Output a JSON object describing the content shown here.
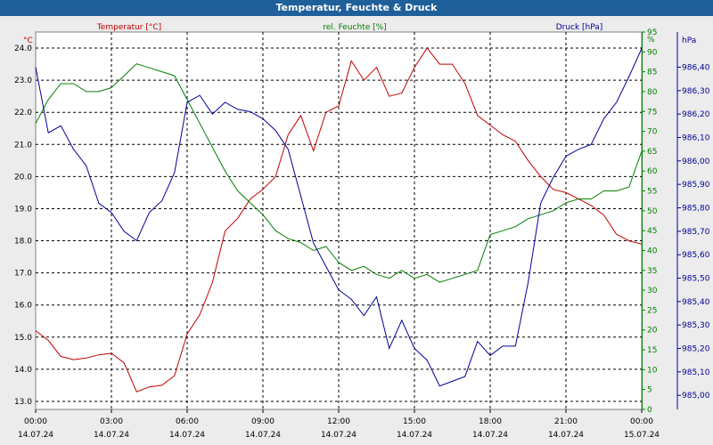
{
  "window": {
    "title": "Temperatur, Feuchte & Druck"
  },
  "colors": {
    "temp": "#c00000",
    "hum": "#008000",
    "press": "#000099",
    "title_bg": "#1f5f9a"
  },
  "chart_data": {
    "type": "line",
    "title": "Temperatur, Feuchte & Druck",
    "grid": true,
    "x_ticks": [
      {
        "time": "00:00",
        "date": "14.07.24"
      },
      {
        "time": "03:00",
        "date": "14.07.24"
      },
      {
        "time": "06:00",
        "date": "14.07.24"
      },
      {
        "time": "09:00",
        "date": "14.07.24"
      },
      {
        "time": "12:00",
        "date": "14.07.24"
      },
      {
        "time": "15:00",
        "date": "14.07.24"
      },
      {
        "time": "18:00",
        "date": "14.07.24"
      },
      {
        "time": "21:00",
        "date": "14.07.24"
      },
      {
        "time": "00:00",
        "date": "15.07.24"
      }
    ],
    "axes": {
      "temp": {
        "unit": "°C",
        "label": "Temperatur [°C]",
        "range": [
          12.75,
          24.5
        ],
        "ticks": [
          "24.0",
          "23.0",
          "22.0",
          "21.0",
          "20.0",
          "19.0",
          "18.0",
          "17.0",
          "16.0",
          "15.0",
          "14.0",
          "13.0"
        ]
      },
      "hum": {
        "unit": "%",
        "label": "rel. Feuchte [%]",
        "range": [
          0,
          95
        ],
        "ticks": [
          "95",
          "90",
          "85",
          "80",
          "75",
          "70",
          "65",
          "60",
          "55",
          "50",
          "45",
          "40",
          "35",
          "30",
          "25",
          "20",
          "15",
          "10",
          "5",
          "0"
        ]
      },
      "press": {
        "unit": "hPa",
        "label": "Druck [hPa]",
        "range": [
          984.94,
          986.55
        ],
        "ticks": [
          "986,40",
          "986,30",
          "986,20",
          "986,10",
          "986,00",
          "985,90",
          "985,80",
          "985,70",
          "985,60",
          "985,50",
          "985,40",
          "985,30",
          "985,20",
          "985,10",
          "985,00"
        ]
      }
    },
    "series": [
      {
        "name": "Temperatur [°C]",
        "axis": "temp",
        "x": [
          0,
          0.5,
          1,
          1.5,
          2,
          2.5,
          3,
          3.5,
          4,
          4.5,
          5,
          5.5,
          6,
          6.5,
          7,
          7.5,
          8,
          8.5,
          9,
          9.5,
          10,
          10.5,
          11,
          11.5,
          12,
          12.5,
          13,
          13.5,
          14,
          14.5,
          15,
          15.5,
          16,
          16.5,
          17,
          17.5,
          18,
          18.5,
          19,
          19.5,
          20,
          20.5,
          21,
          21.5,
          22,
          22.5,
          23,
          23.5,
          24
        ],
        "values": [
          15.2,
          14.9,
          14.4,
          14.3,
          14.35,
          14.45,
          14.5,
          14.2,
          13.3,
          13.45,
          13.5,
          13.8,
          15.1,
          15.7,
          16.7,
          18.3,
          18.7,
          19.3,
          19.6,
          20.0,
          21.3,
          21.9,
          20.8,
          22.0,
          22.2,
          23.6,
          23.0,
          23.4,
          22.5,
          22.6,
          23.4,
          24.0,
          23.5,
          23.5,
          22.9,
          21.9,
          21.6,
          21.3,
          21.1,
          20.5,
          20.0,
          19.6,
          19.5,
          19.3,
          19.1,
          18.8,
          18.2,
          18.0,
          17.9
        ],
        "color": "#c00000"
      },
      {
        "name": "rel. Feuchte [%]",
        "axis": "hum",
        "x": [
          0,
          0.5,
          1,
          1.5,
          2,
          2.5,
          3,
          3.5,
          4,
          4.5,
          5,
          5.5,
          6,
          6.5,
          7,
          7.5,
          8,
          8.5,
          9,
          9.5,
          10,
          10.5,
          11,
          11.5,
          12,
          12.5,
          13,
          13.5,
          14,
          14.5,
          15,
          15.5,
          16,
          16.5,
          17,
          17.5,
          18,
          18.5,
          19,
          19.5,
          20,
          20.5,
          21,
          21.5,
          22,
          22.5,
          23,
          23.5,
          24
        ],
        "values": [
          72,
          78,
          82,
          82,
          80,
          80,
          81,
          84,
          87,
          86,
          85,
          84,
          78,
          72,
          66,
          60,
          55,
          52,
          49,
          45,
          43,
          42,
          40,
          41,
          37,
          35,
          36,
          34,
          33,
          35,
          33,
          34,
          32,
          33,
          34,
          35,
          44,
          45,
          46,
          48,
          49,
          50,
          52,
          53,
          53,
          55,
          55,
          56,
          65
        ],
        "color": "#008000"
      },
      {
        "name": "Druck [hPa]",
        "axis": "press",
        "x": [
          0,
          0.5,
          1,
          1.5,
          2,
          2.5,
          3,
          3.5,
          4,
          4.5,
          5,
          5.5,
          6,
          6.5,
          7,
          7.5,
          8,
          8.5,
          9,
          9.5,
          10,
          10.5,
          11,
          11.5,
          12,
          12.5,
          13,
          13.5,
          14,
          14.5,
          15,
          15.5,
          16,
          16.5,
          17,
          17.5,
          18,
          18.5,
          19,
          19.5,
          20,
          20.5,
          21,
          21.5,
          22,
          22.5,
          23,
          23.5,
          24
        ],
        "values": [
          986.4,
          986.12,
          986.15,
          986.05,
          985.98,
          985.82,
          985.78,
          985.7,
          985.66,
          985.78,
          985.83,
          985.95,
          986.25,
          986.28,
          986.2,
          986.25,
          986.22,
          986.21,
          986.18,
          986.13,
          986.05,
          985.85,
          985.65,
          985.55,
          985.45,
          985.41,
          985.34,
          985.42,
          985.2,
          985.32,
          985.2,
          985.15,
          985.04,
          985.06,
          985.08,
          985.23,
          985.17,
          985.21,
          985.21,
          985.48,
          985.82,
          985.93,
          986.02,
          986.05,
          986.07,
          986.18,
          986.25,
          986.36,
          986.48
        ],
        "color": "#000099"
      }
    ]
  }
}
